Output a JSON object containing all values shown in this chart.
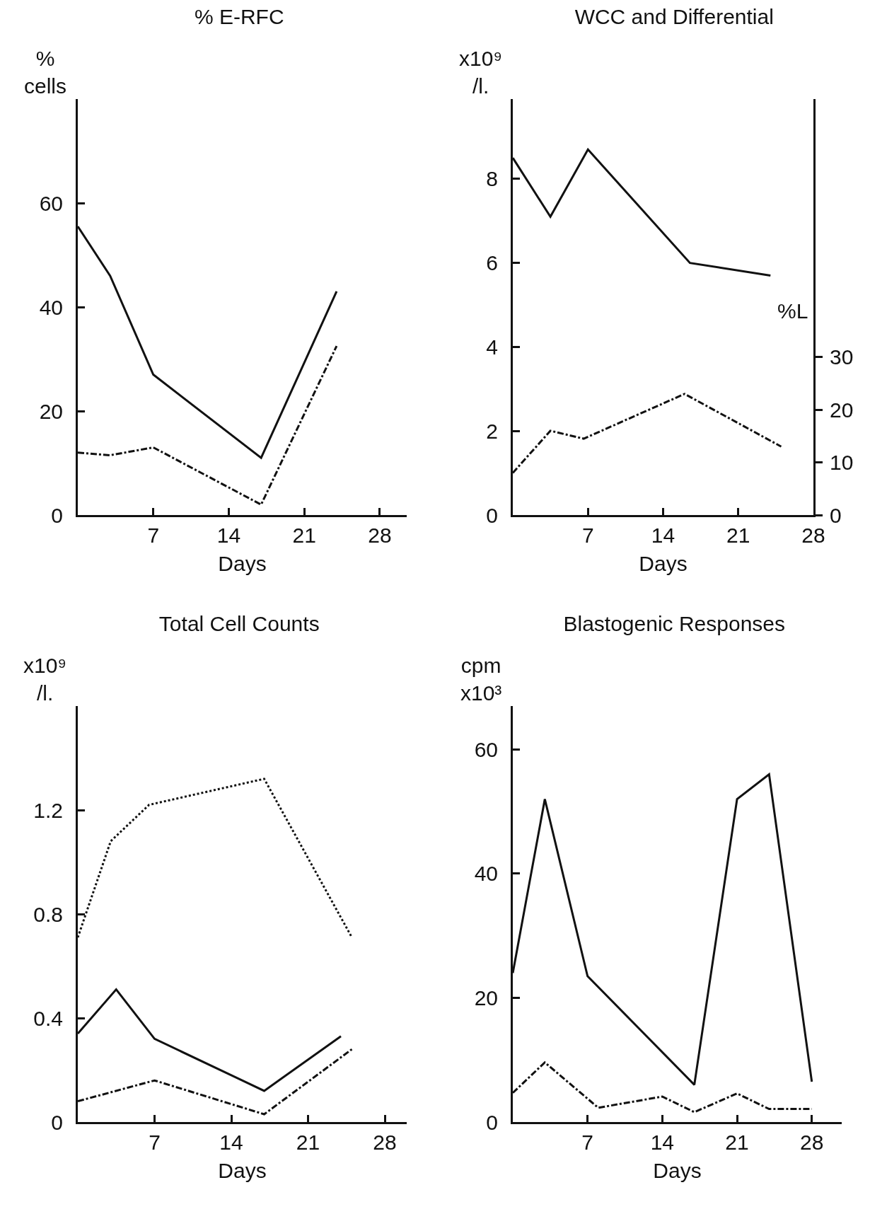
{
  "chart_data": [
    {
      "type": "line",
      "title": "% E-RFC",
      "xlabel": "Days",
      "ylabel": "%\ncells",
      "x": [
        0,
        3,
        7,
        17,
        24
      ],
      "xlim": [
        0,
        30.5
      ],
      "xticks": [
        7,
        14,
        21,
        28
      ],
      "ylim": [
        0,
        80
      ],
      "yticks": [
        0,
        20,
        40,
        60
      ],
      "color": "#111111",
      "series": [
        {
          "values": [
            55.5,
            46,
            27,
            11,
            43
          ],
          "line_style": "solid"
        },
        {
          "values": [
            12,
            11.5,
            13,
            2,
            32.5
          ],
          "line_style": "dashdot"
        }
      ]
    },
    {
      "type": "line",
      "title": "WCC and Differential",
      "xlabel": "Days",
      "ylabel": "x10⁹\n/l.",
      "y2label": "%L",
      "x": [
        0,
        3.5,
        7,
        16.5,
        24
      ],
      "xlim": [
        0,
        28
      ],
      "xticks": [
        7,
        14,
        21,
        28
      ],
      "ylim": [
        0,
        9.9
      ],
      "yticks": [
        0,
        2,
        4,
        6,
        8
      ],
      "y2lim": [
        0,
        79
      ],
      "y2ticks": [
        0,
        10,
        20,
        30
      ],
      "color": "#111111",
      "series": [
        {
          "values": [
            8.5,
            7.1,
            8.7,
            6.0,
            5.7
          ],
          "line_style": "solid"
        },
        {
          "x": [
            0,
            3.5,
            6.6,
            16,
            25
          ],
          "values": [
            8,
            16,
            14.5,
            23,
            13
          ],
          "line_style": "dashdot",
          "axis": "y2"
        }
      ]
    },
    {
      "type": "line",
      "title": "Total Cell Counts",
      "xlabel": "Days",
      "ylabel": "x10⁹\n/l.",
      "xlim": [
        0,
        30
      ],
      "xticks": [
        7,
        14,
        21,
        28
      ],
      "ylim": [
        0,
        1.6
      ],
      "yticks": [
        0,
        0.4,
        0.8,
        1.2
      ],
      "color": "#111111",
      "series": [
        {
          "x": [
            0,
            3,
            6.5,
            17,
            25
          ],
          "values": [
            0.71,
            1.08,
            1.22,
            1.32,
            0.71
          ],
          "line_style": "dotted"
        },
        {
          "x": [
            0,
            3.5,
            7,
            17,
            24
          ],
          "values": [
            0.34,
            0.51,
            0.32,
            0.12,
            0.33
          ],
          "line_style": "solid"
        },
        {
          "x": [
            0,
            7,
            17,
            25
          ],
          "values": [
            0.08,
            0.16,
            0.03,
            0.28
          ],
          "line_style": "dashdot"
        }
      ]
    },
    {
      "type": "line",
      "title": "Blastogenic Responses",
      "xlabel": "Days",
      "ylabel": "cpm\nx10³",
      "xlim": [
        0,
        30.8
      ],
      "xticks": [
        7,
        14,
        21,
        28
      ],
      "ylim": [
        0,
        67
      ],
      "yticks": [
        0,
        20,
        40,
        60
      ],
      "color": "#111111",
      "series": [
        {
          "x": [
            0,
            3,
            7,
            17,
            21,
            24,
            28
          ],
          "values": [
            24,
            52,
            23.5,
            6,
            52,
            56,
            6.5
          ],
          "line_style": "solid"
        },
        {
          "x": [
            0,
            3,
            8,
            14,
            17,
            21,
            24,
            28
          ],
          "values": [
            4.7,
            9.6,
            2.3,
            4.1,
            1.6,
            4.6,
            2.1,
            2.1
          ],
          "line_style": "dashdot"
        }
      ]
    }
  ]
}
